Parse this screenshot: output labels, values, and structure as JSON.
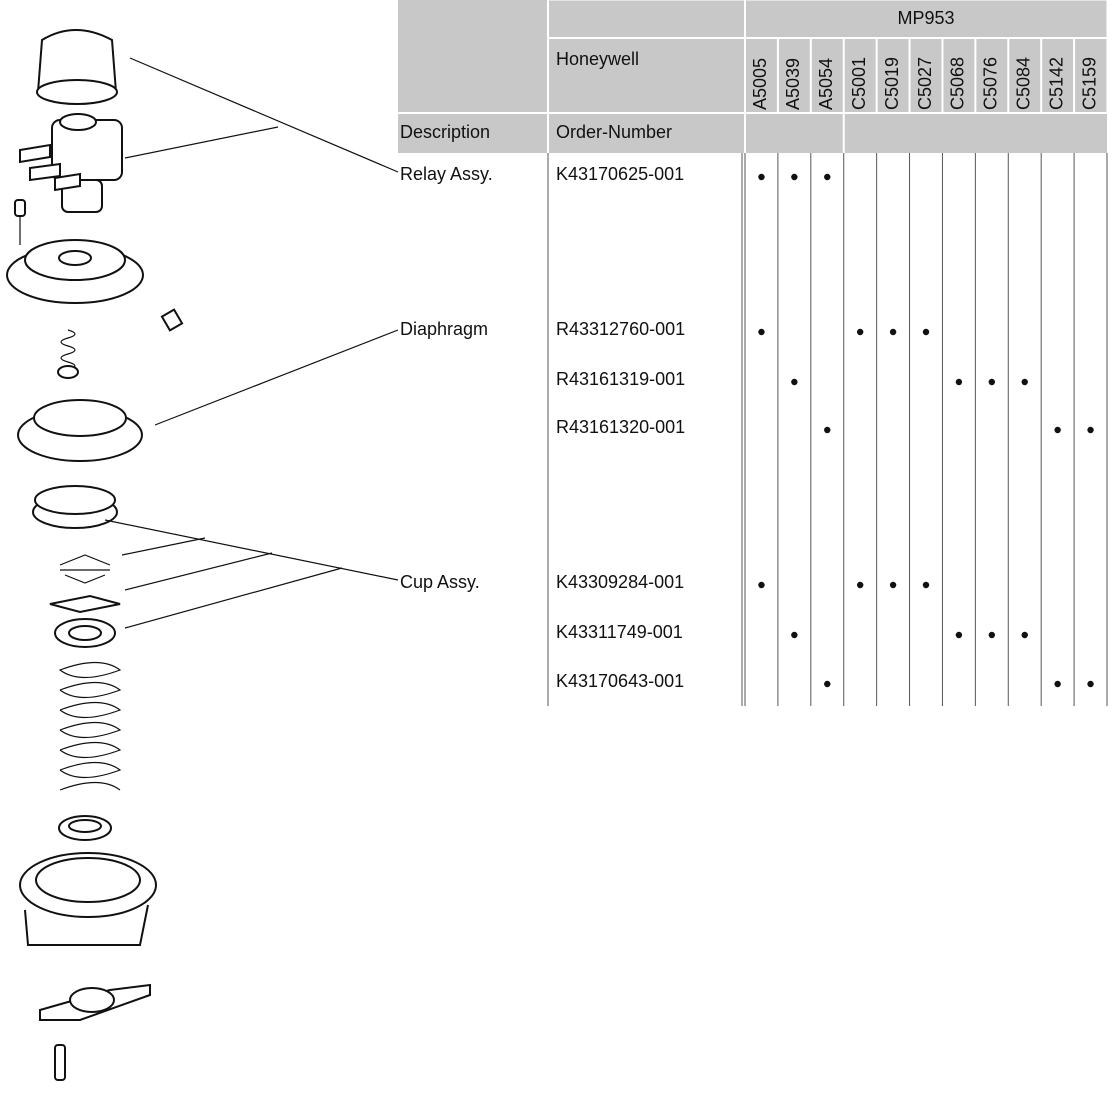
{
  "table": {
    "header": {
      "model": "MP953",
      "brand": "Honeywell",
      "description": "Description",
      "order_number": "Order-Number",
      "variants": [
        "A5005",
        "A5039",
        "A5054",
        "C5001",
        "C5019",
        "C5027",
        "C5068",
        "C5076",
        "C5084",
        "C5142",
        "C5159"
      ]
    },
    "rows": [
      {
        "description": "Relay Assy.",
        "order_number": "K43170625-001",
        "fits": [
          true,
          true,
          true,
          false,
          false,
          false,
          false,
          false,
          false,
          false,
          false
        ]
      },
      {
        "description": "Diaphragm",
        "order_number": "R43312760-001",
        "fits": [
          true,
          false,
          false,
          true,
          true,
          true,
          false,
          false,
          false,
          false,
          false
        ]
      },
      {
        "description": null,
        "order_number": "R43161319-001",
        "fits": [
          false,
          true,
          false,
          false,
          false,
          false,
          true,
          true,
          true,
          false,
          false
        ]
      },
      {
        "description": null,
        "order_number": "R43161320-001",
        "fits": [
          false,
          false,
          true,
          false,
          false,
          false,
          false,
          false,
          false,
          true,
          true
        ]
      },
      {
        "description": "Cup Assy.",
        "order_number": "K43309284-001",
        "fits": [
          true,
          false,
          false,
          true,
          true,
          true,
          false,
          false,
          false,
          false,
          false
        ]
      },
      {
        "description": null,
        "order_number": "K43311749-001",
        "fits": [
          false,
          true,
          false,
          false,
          false,
          false,
          true,
          true,
          true,
          false,
          false
        ]
      },
      {
        "description": null,
        "order_number": "K43170643-001",
        "fits": [
          false,
          false,
          true,
          false,
          false,
          false,
          false,
          false,
          false,
          true,
          true
        ]
      }
    ]
  }
}
